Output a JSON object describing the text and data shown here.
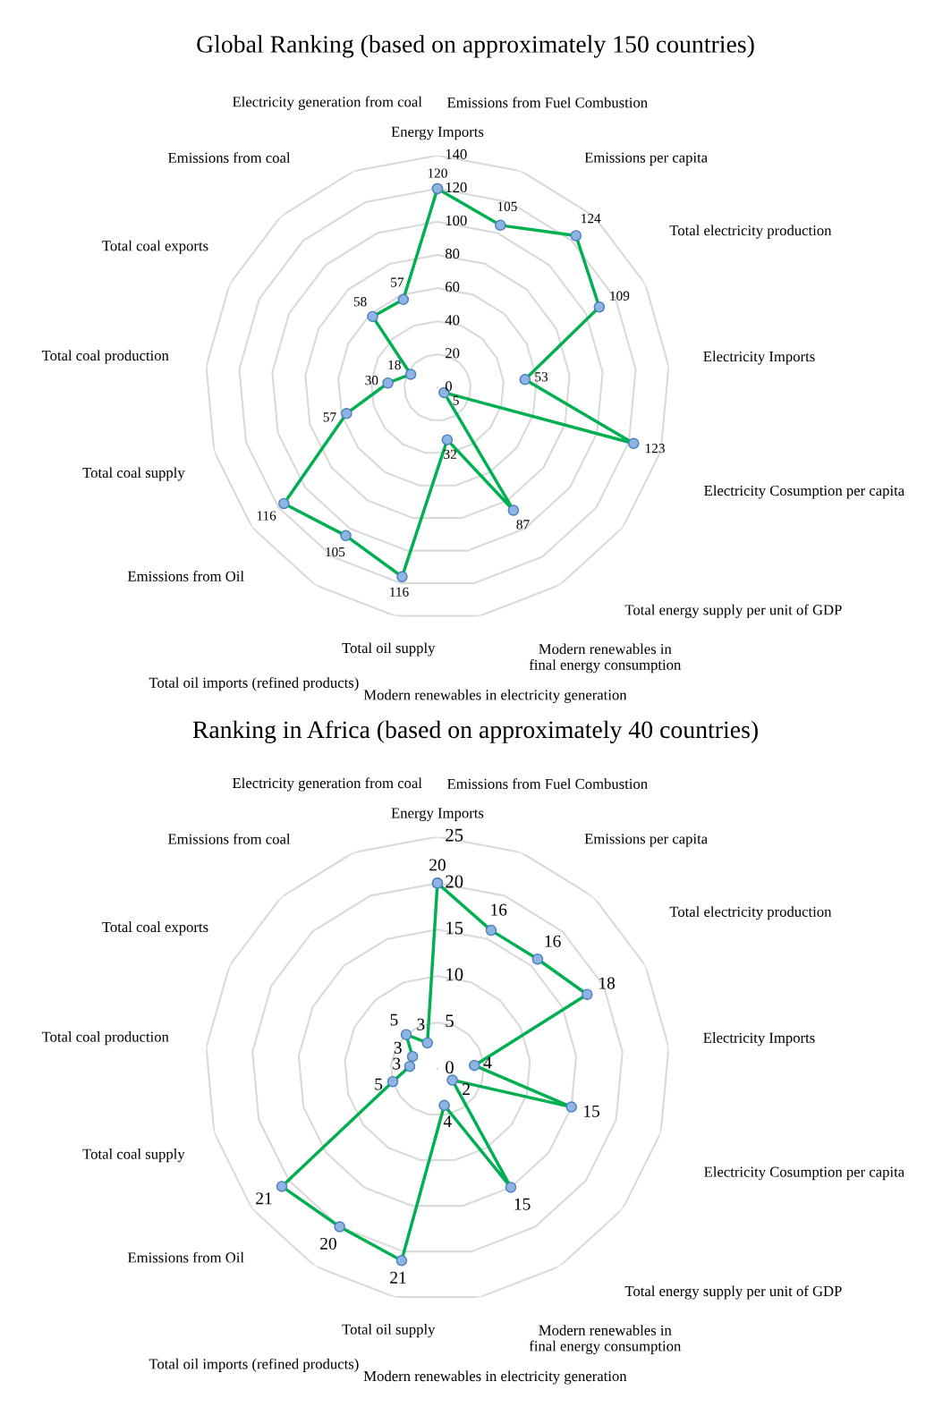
{
  "chart_data": [
    {
      "type": "radar",
      "title": "Global Ranking (based on approximately 150 countries)",
      "categories": [
        "Energy Imports",
        "Emissions from Fuel Combustion",
        "Emissions per capita",
        "Total electricity production",
        "Electricity Imports",
        "Electricity Cosumption per capita",
        "Total energy supply per unit of GDP",
        "Modern renewables in final energy consumption",
        "Modern renewables in electricity generation",
        "Total oil supply",
        "Total oil imports (refined products)",
        "Emissions from Oil",
        "Total coal supply",
        "Total coal production",
        "Total coal exports",
        "Emissions from coal",
        "Electricity generation from coal"
      ],
      "series": [
        {
          "color": "#00b050",
          "values": [
            120,
            105,
            124,
            109,
            53,
            123,
            5,
            87,
            32,
            116,
            105,
            116,
            57,
            30,
            18,
            58,
            57
          ]
        }
      ],
      "ylim": [
        0,
        140
      ],
      "yticks": [
        0,
        20,
        40,
        60,
        80,
        100,
        120,
        140
      ],
      "grid": true,
      "marker": "circle",
      "data_labels": true
    },
    {
      "type": "radar",
      "title": "Ranking in Africa (based on approximately 40 countries)",
      "categories": [
        "Energy Imports",
        "Emissions from Fuel Combustion",
        "Emissions per capita",
        "Total electricity production",
        "Electricity Imports",
        "Electricity Cosumption per capita",
        "Total energy supply per unit of GDP",
        "Modern renewables in final energy consumption",
        "Modern renewables in electricity generation",
        "Total oil supply",
        "Total oil imports (refined products)",
        "Emissions from Oil",
        "Total coal supply",
        "Total coal production",
        "Total coal exports",
        "Emissions from coal",
        "Electricity generation from coal"
      ],
      "series": [
        {
          "color": "#00b050",
          "values": [
            20,
            16,
            16,
            18,
            4,
            15,
            2,
            15,
            4,
            21,
            20,
            21,
            5,
            3,
            3,
            5,
            3
          ]
        }
      ],
      "ylim": [
        0,
        25
      ],
      "yticks": [
        0,
        5,
        10,
        15,
        20,
        25
      ],
      "grid": true,
      "marker": "circle",
      "data_labels": true
    }
  ]
}
